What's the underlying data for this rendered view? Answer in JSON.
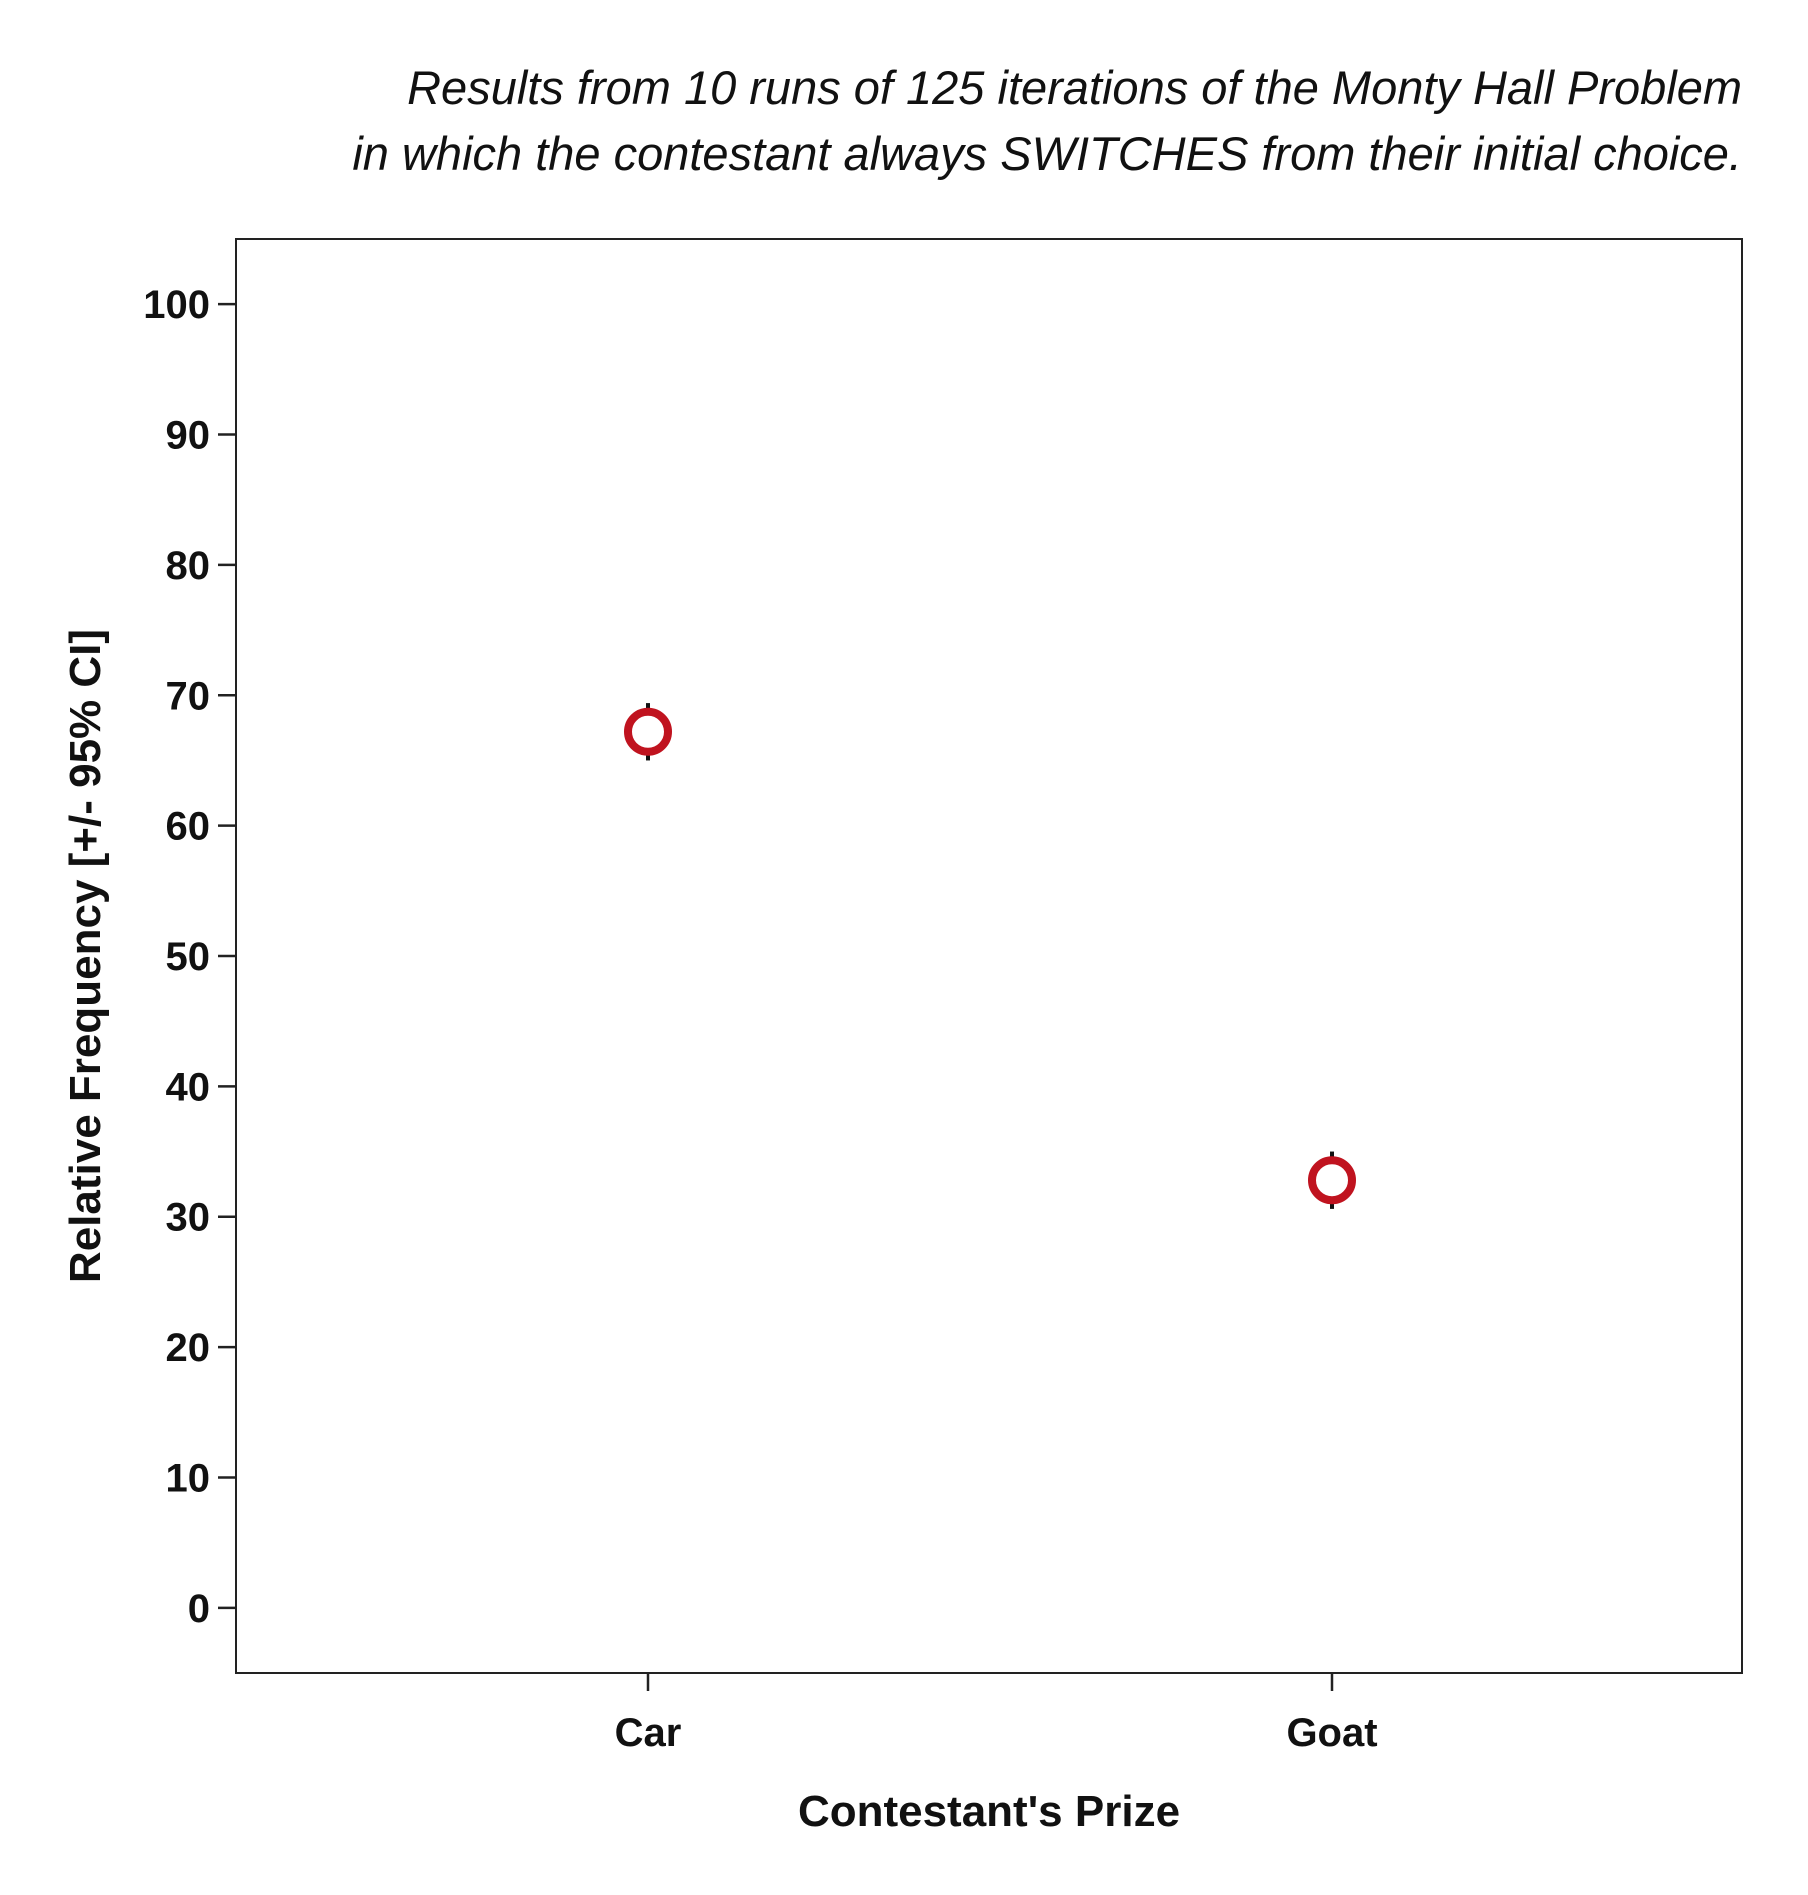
{
  "chart_data": {
    "type": "scatter",
    "title_lines": [
      "Results from 10 runs of 125 iterations of the Monty Hall Problem",
      "in which the contestant always SWITCHES from their initial choice."
    ],
    "xlabel": "Contestant's Prize",
    "ylabel": "Relative Frequency [+/- 95% CI]",
    "categories": [
      "Car",
      "Goat"
    ],
    "values": [
      67.2,
      32.8
    ],
    "ci_lower": [
      65.0,
      30.6
    ],
    "ci_upper": [
      69.4,
      35.0
    ],
    "ylim": [
      -5,
      105
    ],
    "yticks": [
      0,
      10,
      20,
      30,
      40,
      50,
      60,
      70,
      80,
      90,
      100
    ],
    "grid": false,
    "marker": "open-circle",
    "marker_color": "#c0131f",
    "errorbar_color": "#111111"
  }
}
